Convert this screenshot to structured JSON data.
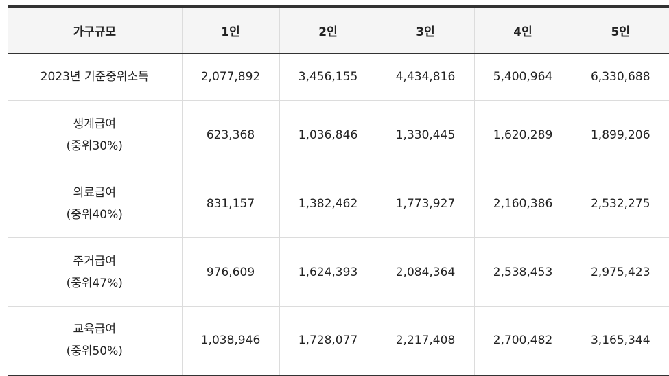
{
  "table": {
    "headers": [
      "가구규모",
      "1인",
      "2인",
      "3인",
      "4인",
      "5인"
    ],
    "rows": [
      {
        "label": [
          "2023년 기준중위소득"
        ],
        "values": [
          "2,077,892",
          "3,456,155",
          "4,434,816",
          "5,400,964",
          "6,330,688"
        ]
      },
      {
        "label": [
          "생계급여",
          "(중위30%)"
        ],
        "values": [
          "623,368",
          "1,036,846",
          "1,330,445",
          "1,620,289",
          "1,899,206"
        ]
      },
      {
        "label": [
          "의료급여",
          "(중위40%)"
        ],
        "values": [
          "831,157",
          "1,382,462",
          "1,773,927",
          "2,160,386",
          "2,532,275"
        ]
      },
      {
        "label": [
          "주거급여",
          "(중위47%)"
        ],
        "values": [
          "976,609",
          "1,624,393",
          "2,084,364",
          "2,538,453",
          "2,975,423"
        ]
      },
      {
        "label": [
          "교육급여",
          "(중위50%)"
        ],
        "values": [
          "1,038,946",
          "1,728,077",
          "2,217,408",
          "2,700,482",
          "3,165,344"
        ]
      }
    ]
  }
}
